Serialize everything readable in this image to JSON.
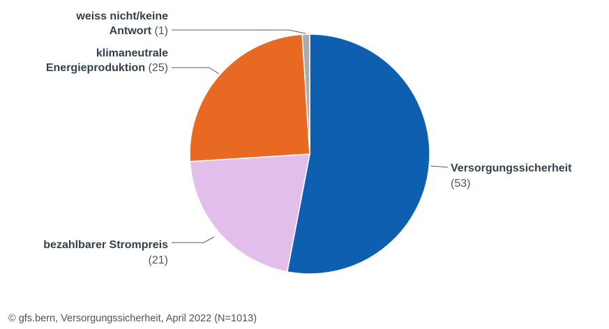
{
  "chart_data": {
    "type": "pie",
    "slices": [
      {
        "label": "Versorgungssicherheit",
        "value": 53,
        "value_text": "(53)",
        "color": "#0f5fb0"
      },
      {
        "label": "bezahlbarer Strompreis",
        "value": 21,
        "value_text": "(21)",
        "color": "#e1bfea"
      },
      {
        "label": "klimaneutrale Energieproduktion",
        "value": 25,
        "value_text": "(25)",
        "color": "#e86a22"
      },
      {
        "label": "weiss nicht/keine Antwort",
        "value": 1,
        "value_text": "(1)",
        "color": "#a9adb0"
      }
    ]
  },
  "source": "© gfs.bern, Versorgungssicherheit, April 2022 (N=1013)"
}
